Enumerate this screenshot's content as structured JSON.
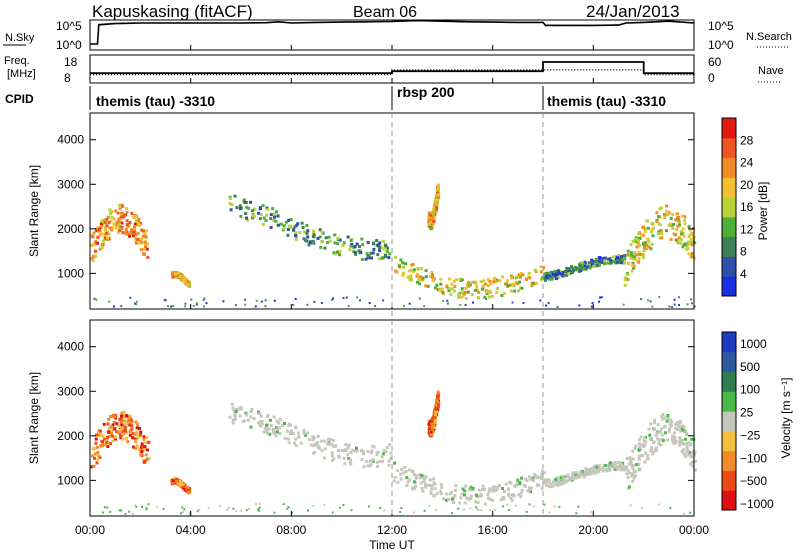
{
  "header": {
    "radar": "Kapuskasing (fitACF)",
    "beam": "Beam 06",
    "date": "24/Jan/2013"
  },
  "colors": {
    "power_scale": [
      "#1a2fe0",
      "#2f4fa8",
      "#3f7f5a",
      "#4fae38",
      "#b8d23a",
      "#f2c030",
      "#f18a22",
      "#ee5520",
      "#e01a10"
    ],
    "velocity_scale": [
      "#e01010",
      "#ee4a15",
      "#f28a28",
      "#f4c040",
      "#c7c6bd",
      "#48b848",
      "#2e7e4f",
      "#2c5aa0",
      "#1d3bc0"
    ],
    "ground_scatter": "#c7c6bd"
  },
  "chart_data": [
    {
      "type": "line",
      "name": "noise-panel",
      "left_labels": [
        "N.Sky"
      ],
      "left_ticks": [
        "10^5",
        "10^0"
      ],
      "right_labels": [
        "N.Search"
      ],
      "right_ticks": [
        "10^5",
        "10^0"
      ],
      "x": [
        0.0,
        0.3,
        0.35,
        1,
        2,
        3,
        4,
        5,
        6,
        7,
        7.5,
        8,
        9,
        10,
        11,
        12,
        13,
        14,
        15,
        16,
        17,
        18,
        18.1,
        19,
        20,
        21,
        21.3,
        22,
        23,
        24
      ],
      "series": [
        {
          "name": "N.Sky",
          "values": [
            1.0,
            1.0,
            4.2,
            4.4,
            4.5,
            4.5,
            4.5,
            4.5,
            4.5,
            4.55,
            4.7,
            4.5,
            4.6,
            4.65,
            4.7,
            4.75,
            4.9,
            4.8,
            4.7,
            4.65,
            4.6,
            4.6,
            4.1,
            4.1,
            4.1,
            4.15,
            4.5,
            4.6,
            4.8,
            4.5
          ]
        },
        {
          "name": "N.Search",
          "values": [
            1.0,
            1.0,
            4.3,
            4.5,
            4.55,
            4.55,
            4.55,
            4.55,
            4.55,
            4.6,
            4.65,
            4.55,
            4.65,
            4.7,
            4.75,
            4.8,
            5.0,
            4.85,
            4.75,
            4.7,
            4.65,
            4.65,
            4.2,
            4.15,
            4.15,
            4.2,
            4.55,
            4.65,
            4.85,
            4.55
          ]
        }
      ],
      "ylim": [
        0,
        5
      ]
    },
    {
      "type": "line",
      "name": "frequency-panel",
      "left_labels": [
        "Freq.",
        "[MHz]"
      ],
      "left_ticks": [
        "18",
        "8"
      ],
      "right_labels": [
        "Nave"
      ],
      "right_ticks": [
        "60",
        "0"
      ],
      "x": [
        0,
        12,
        12,
        18,
        18,
        22,
        22,
        24
      ],
      "series": [
        {
          "name": "Freq",
          "values": [
            11.5,
            11.5,
            12.2,
            12.2,
            15.5,
            15.5,
            11.5,
            11.5
          ],
          "units": "MHz"
        },
        {
          "name": "Nave",
          "values": [
            18,
            18,
            28,
            28,
            28,
            28,
            18,
            18
          ]
        }
      ],
      "ylim": [
        8,
        18
      ]
    },
    {
      "type": "table",
      "name": "cpid-bar",
      "label": "CPID",
      "segments": [
        {
          "label": "themis (tau) -3310",
          "start": 0,
          "end": 12
        },
        {
          "label": "rbsp 200",
          "start": 12,
          "end": 18
        },
        {
          "label": "themis (tau) -3310",
          "start": 18,
          "end": 24
        }
      ]
    },
    {
      "type": "heatmap",
      "name": "power-panel",
      "ylabel": "Slant Range [km]",
      "ylim": [
        200,
        4600
      ],
      "yticks": [
        1000,
        2000,
        3000,
        4000
      ],
      "xlim": [
        0,
        24
      ],
      "colorbar": {
        "label": "Power [dB]",
        "ticks": [
          4,
          8,
          12,
          16,
          20,
          24,
          28
        ],
        "range": [
          0,
          32
        ]
      },
      "features": [
        {
          "x": [
            0.0,
            2.3
          ],
          "y": [
            1000,
            2800
          ],
          "power": 24
        },
        {
          "x": [
            3.2,
            3.9
          ],
          "y": [
            800,
            1100
          ],
          "power": 20
        },
        {
          "x": [
            5.5,
            11.9
          ],
          "y": [
            1700,
            3000
          ],
          "power": 10
        },
        {
          "x": [
            12.0,
            18.0
          ],
          "y": [
            800,
            2000
          ],
          "power": 18
        },
        {
          "x": [
            13.4,
            13.8
          ],
          "y": [
            2300,
            3300
          ],
          "power": 20
        },
        {
          "x": [
            18.0,
            21.2
          ],
          "y": [
            1000,
            1500
          ],
          "power": 8
        },
        {
          "x": [
            21.2,
            24.0
          ],
          "y": [
            700,
            2800
          ],
          "power": 18
        }
      ]
    },
    {
      "type": "heatmap",
      "name": "velocity-panel",
      "ylabel": "Slant Range [km]",
      "xlabel": "Time UT",
      "ylim": [
        200,
        4600
      ],
      "yticks": [
        1000,
        2000,
        3000,
        4000
      ],
      "xlim": [
        0,
        24
      ],
      "xticks": [
        "00:00",
        "04:00",
        "08:00",
        "12:00",
        "16:00",
        "20:00",
        "00:00"
      ],
      "colorbar": {
        "label": "Velocity [m s⁻¹]",
        "ticks": [
          "1000",
          "500",
          "100",
          "25",
          "−25",
          "−100",
          "−500",
          "−1000"
        ]
      },
      "features": [
        {
          "x": [
            0.0,
            2.3
          ],
          "y": [
            1000,
            2800
          ],
          "velocity": -150
        },
        {
          "x": [
            3.2,
            3.9
          ],
          "y": [
            800,
            1100
          ],
          "velocity": -100
        },
        {
          "x": [
            5.5,
            11.9
          ],
          "y": [
            1700,
            3000
          ],
          "velocity": 0
        },
        {
          "x": [
            12.0,
            18.0
          ],
          "y": [
            800,
            2000
          ],
          "velocity": 0
        },
        {
          "x": [
            13.4,
            13.8
          ],
          "y": [
            2300,
            3300
          ],
          "velocity": -200
        },
        {
          "x": [
            18.0,
            21.2
          ],
          "y": [
            1000,
            1500
          ],
          "velocity": 0
        },
        {
          "x": [
            21.2,
            24.0
          ],
          "y": [
            700,
            2800
          ],
          "velocity": 0
        }
      ]
    }
  ]
}
